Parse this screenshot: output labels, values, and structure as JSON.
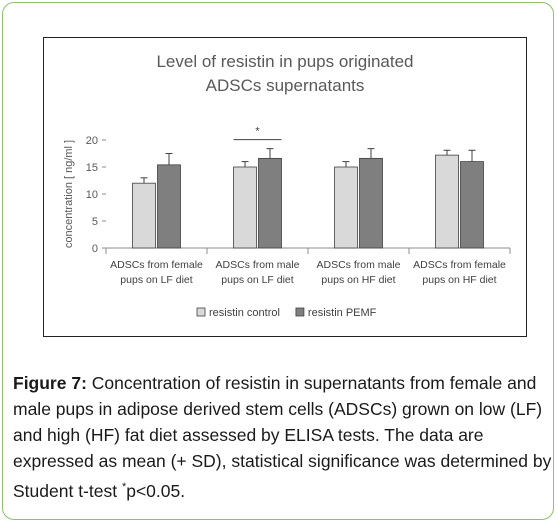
{
  "caption": {
    "label": "Figure 7:",
    "text": "Concentration of resistin in supernatants from female and male pups in adipose derived stem cells (ADSCs) grown on low (LF) and high (HF) fat diet assessed by ELISA tests. The data are expressed as mean (+ SD), statistical significance was determined by Student t-test ",
    "superscript": "*",
    "tail": "p<0.05."
  },
  "chart_data": {
    "type": "bar",
    "title": "Level of resistin in pups originated\nADSCs supernatants",
    "xlabel": "",
    "ylabel": "concentration [ ng/ml ]",
    "ylim": [
      0,
      20
    ],
    "yticks": [
      0,
      5,
      10,
      15,
      20
    ],
    "grid": false,
    "legend_position": "bottom",
    "categories": [
      [
        "ADSCs from female",
        "pups on LF diet"
      ],
      [
        "ADSCs from male",
        "pups on LF diet"
      ],
      [
        "ADSCs from male",
        "pups on HF diet"
      ],
      [
        "ADSCs from female",
        "pups on HF diet"
      ]
    ],
    "series": [
      {
        "name": "resistin control",
        "color": "#d9d9d9",
        "values": [
          12.0,
          15.0,
          15.0,
          17.2
        ],
        "sd": [
          1.0,
          1.0,
          1.0,
          0.9
        ]
      },
      {
        "name": "resistin PEMF",
        "color": "#7f7f7f",
        "values": [
          15.4,
          16.6,
          16.6,
          16.0
        ],
        "sd": [
          2.1,
          1.8,
          1.8,
          2.1
        ]
      }
    ],
    "annotations": [
      {
        "text": "*",
        "category_index": 1
      }
    ]
  }
}
